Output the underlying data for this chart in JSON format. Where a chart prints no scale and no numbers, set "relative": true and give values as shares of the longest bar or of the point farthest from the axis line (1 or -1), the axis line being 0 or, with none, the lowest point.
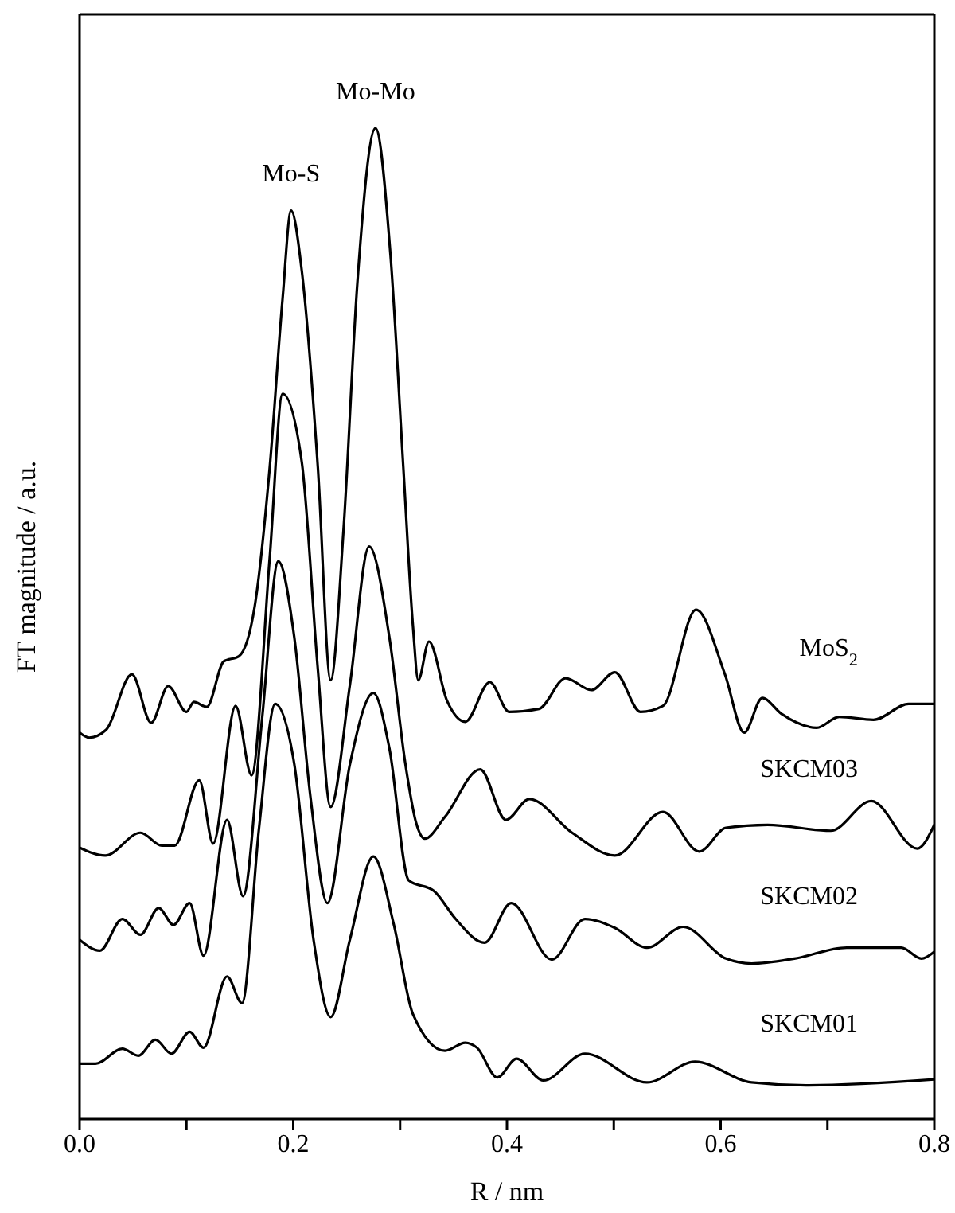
{
  "chart_data": {
    "type": "line",
    "xlabel": "R / nm",
    "ylabel": "FT magnitude / a.u.",
    "relative": true,
    "xlim": [
      0,
      0.8
    ],
    "xticks": [
      {
        "value": 0,
        "label": "0.0"
      },
      {
        "value": 0.1,
        "label": null
      },
      {
        "value": 0.2,
        "label": "0.2"
      },
      {
        "value": 0.3,
        "label": null
      },
      {
        "value": 0.4,
        "label": "0.4"
      },
      {
        "value": 0.5,
        "label": null
      },
      {
        "value": 0.6,
        "label": "0.6"
      },
      {
        "value": 0.7,
        "label": null
      },
      {
        "value": 0.8,
        "label": "0.8"
      }
    ],
    "marker": "none",
    "line_style": "solid",
    "annotations": [
      {
        "text": "Mo-S",
        "x": 0.198,
        "y": 0.917
      },
      {
        "text": "Mo-Mo",
        "x": 0.277,
        "y": 1.0
      }
    ],
    "series": [
      {
        "name": "MoS$_{2}$",
        "color": "#000000",
        "x": [
          0,
          0.009,
          0.025,
          0.049,
          0.067,
          0.083,
          0.1,
          0.107,
          0.119,
          0.135,
          0.149,
          0.164,
          0.178,
          0.19,
          0.198,
          0.208,
          0.223,
          0.235,
          0.247,
          0.26,
          0.277,
          0.291,
          0.303,
          0.312,
          0.317,
          0.327,
          0.344,
          0.361,
          0.384,
          0.402,
          0.43,
          0.455,
          0.479,
          0.501,
          0.525,
          0.546,
          0.577,
          0.604,
          0.622,
          0.639,
          0.657,
          0.69,
          0.711,
          0.743,
          0.776,
          0.8
        ],
        "values": [
          0.39,
          0.385,
          0.393,
          0.449,
          0.4,
          0.437,
          0.411,
          0.421,
          0.416,
          0.462,
          0.467,
          0.518,
          0.658,
          0.828,
          0.917,
          0.856,
          0.658,
          0.443,
          0.594,
          0.844,
          1.0,
          0.872,
          0.658,
          0.498,
          0.443,
          0.482,
          0.422,
          0.401,
          0.441,
          0.411,
          0.414,
          0.445,
          0.433,
          0.451,
          0.411,
          0.417,
          0.514,
          0.449,
          0.39,
          0.425,
          0.409,
          0.395,
          0.406,
          0.403,
          0.419,
          0.419
        ]
      },
      {
        "name": "SKCM03",
        "color": "#000000",
        "x": [
          0,
          0.024,
          0.057,
          0.077,
          0.089,
          0.112,
          0.125,
          0.146,
          0.161,
          0.178,
          0.19,
          0.208,
          0.223,
          0.235,
          0.253,
          0.271,
          0.29,
          0.305,
          0.315,
          0.323,
          0.342,
          0.375,
          0.399,
          0.421,
          0.461,
          0.501,
          0.546,
          0.58,
          0.605,
          0.644,
          0.703,
          0.741,
          0.784,
          0.8
        ],
        "values": [
          0.274,
          0.266,
          0.289,
          0.276,
          0.276,
          0.342,
          0.278,
          0.417,
          0.347,
          0.567,
          0.732,
          0.663,
          0.454,
          0.315,
          0.438,
          0.578,
          0.486,
          0.358,
          0.299,
          0.283,
          0.305,
          0.353,
          0.302,
          0.323,
          0.289,
          0.266,
          0.31,
          0.27,
          0.294,
          0.297,
          0.291,
          0.321,
          0.273,
          0.297
        ]
      },
      {
        "name": "SKCM02",
        "color": "#000000",
        "x": [
          0,
          0.019,
          0.04,
          0.057,
          0.074,
          0.088,
          0.103,
          0.116,
          0.138,
          0.153,
          0.171,
          0.186,
          0.201,
          0.216,
          0.232,
          0.253,
          0.275,
          0.29,
          0.308,
          0.332,
          0.352,
          0.379,
          0.404,
          0.442,
          0.473,
          0.501,
          0.531,
          0.565,
          0.605,
          0.629,
          0.669,
          0.718,
          0.769,
          0.788,
          0.8
        ],
        "values": [
          0.181,
          0.17,
          0.202,
          0.186,
          0.213,
          0.196,
          0.218,
          0.165,
          0.302,
          0.225,
          0.406,
          0.563,
          0.486,
          0.326,
          0.218,
          0.358,
          0.43,
          0.374,
          0.241,
          0.23,
          0.202,
          0.178,
          0.218,
          0.161,
          0.202,
          0.193,
          0.173,
          0.194,
          0.162,
          0.157,
          0.162,
          0.173,
          0.173,
          0.162,
          0.169
        ]
      },
      {
        "name": "SKCM01",
        "color": "#000000",
        "x": [
          0,
          0.015,
          0.04,
          0.055,
          0.071,
          0.086,
          0.103,
          0.116,
          0.138,
          0.152,
          0.168,
          0.183,
          0.201,
          0.219,
          0.235,
          0.253,
          0.275,
          0.294,
          0.312,
          0.342,
          0.361,
          0.372,
          0.391,
          0.409,
          0.434,
          0.473,
          0.531,
          0.576,
          0.629,
          0.68,
          0.8
        ],
        "values": [
          0.056,
          0.056,
          0.071,
          0.064,
          0.08,
          0.066,
          0.088,
          0.072,
          0.144,
          0.117,
          0.294,
          0.419,
          0.358,
          0.181,
          0.103,
          0.181,
          0.265,
          0.197,
          0.106,
          0.069,
          0.077,
          0.072,
          0.042,
          0.061,
          0.039,
          0.066,
          0.037,
          0.058,
          0.037,
          0.034,
          0.04
        ]
      }
    ]
  }
}
